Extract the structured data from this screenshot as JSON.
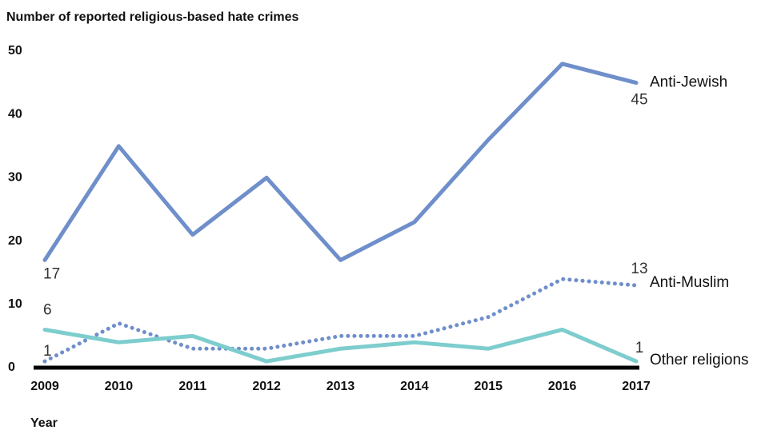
{
  "chart_data": {
    "type": "line",
    "title": "Number of reported religious-based hate crimes",
    "x_label": "Year",
    "categories": [
      "2009",
      "2010",
      "2011",
      "2012",
      "2013",
      "2014",
      "2015",
      "2016",
      "2017"
    ],
    "series": [
      {
        "name": "Anti-Jewish",
        "color": "#6f8fcb",
        "line_style": "solid",
        "values": [
          17,
          35,
          21,
          30,
          17,
          23,
          36,
          48,
          45
        ]
      },
      {
        "name": "Anti-Muslim",
        "color": "#6f8fcb",
        "line_style": "dotted",
        "values": [
          1,
          7,
          3,
          3,
          5,
          5,
          8,
          14,
          13
        ]
      },
      {
        "name": "Other religions",
        "color": "#7ecdce",
        "line_style": "solid",
        "values": [
          6,
          4,
          5,
          1,
          3,
          4,
          3,
          6,
          1
        ]
      }
    ],
    "ylim": [
      0,
      50
    ],
    "yticks": [
      0,
      10,
      20,
      30,
      40,
      50
    ],
    "grid": false
  }
}
